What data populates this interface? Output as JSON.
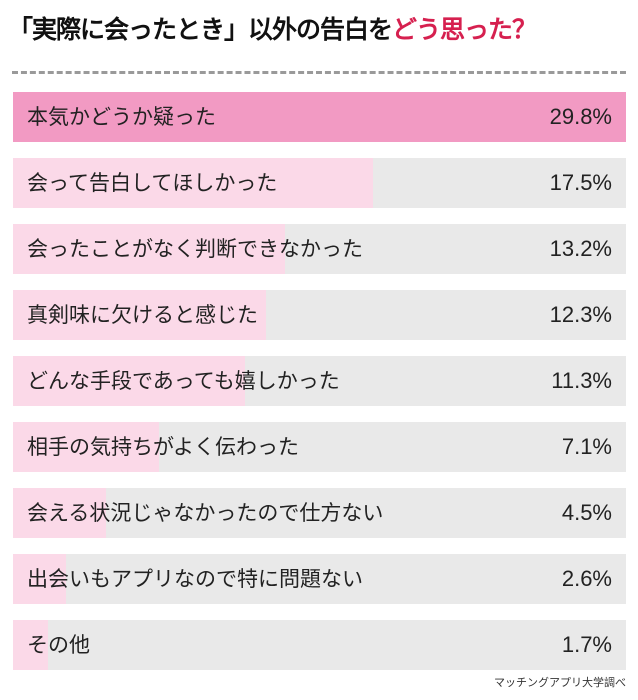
{
  "title": {
    "main": "「実際に会ったとき」以外の告白を",
    "highlight": "どう思った？"
  },
  "source": "マッチングアプリ大学調べ",
  "colors": {
    "top_bar": "#f29ac3",
    "bar": "#fbd9e8",
    "track": "#e9e9e9",
    "highlight": "#d6204f"
  },
  "chart_data": {
    "type": "bar",
    "orientation": "horizontal",
    "categories": [
      "本気かどうか疑った",
      "会って告白してほしかった",
      "会ったことがなく判断できなかった",
      "真剣味に欠けると感じた",
      "どんな手段であっても嬉しかった",
      "相手の気持ちがよく伝わった",
      "会える状況じゃなかったので仕方ない",
      "出会いもアプリなので特に問題ない",
      "その他"
    ],
    "values": [
      29.8,
      17.5,
      13.2,
      12.3,
      11.3,
      7.1,
      4.5,
      2.6,
      1.7
    ],
    "labels": [
      "29.8%",
      "17.5%",
      "13.2%",
      "12.3%",
      "11.3%",
      "7.1%",
      "4.5%",
      "2.6%",
      "1.7%"
    ],
    "unit": "%",
    "xlim": [
      0,
      29.8
    ]
  }
}
